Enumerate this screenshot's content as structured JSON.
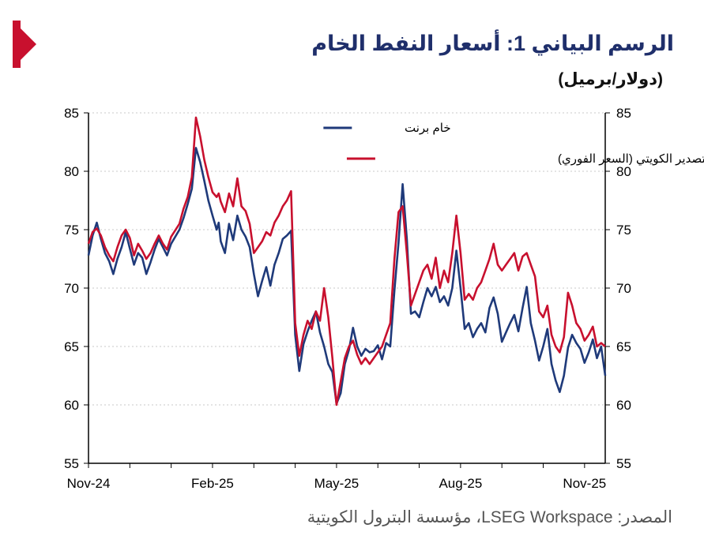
{
  "header": {
    "title": "الرسم البياني 1: أسعار النفط الخام",
    "unit": "(دولار/برميل)"
  },
  "footer": {
    "source": "المصدر: LSEG Workspace، مؤسسة البترول الكويتية"
  },
  "colors": {
    "brand": "#c8102e",
    "brent": "#1f3a7a",
    "kuwait": "#c8102e",
    "title": "#1f2f6b"
  },
  "chart_data": {
    "type": "line",
    "x_ticks": [
      "Nov-24",
      "Feb-25",
      "May-25",
      "Aug-25",
      "Nov-25"
    ],
    "y_ticks": [
      55,
      60,
      65,
      70,
      75,
      80,
      85
    ],
    "ylim": [
      55,
      85
    ],
    "xlim": [
      0,
      12.5
    ],
    "grid": true,
    "legend_position": "top-center",
    "series": [
      {
        "name": "خام برنت",
        "color": "#1f3a7a",
        "x": [
          0,
          0.1,
          0.2,
          0.3,
          0.4,
          0.5,
          0.6,
          0.7,
          0.8,
          0.9,
          1.0,
          1.1,
          1.2,
          1.3,
          1.4,
          1.5,
          1.6,
          1.7,
          1.8,
          1.9,
          2.0,
          2.2,
          2.3,
          2.4,
          2.5,
          2.6,
          2.7,
          2.8,
          2.9,
          3.0,
          3.1,
          3.15,
          3.2,
          3.3,
          3.4,
          3.5,
          3.6,
          3.7,
          3.8,
          3.9,
          4.0,
          4.1,
          4.2,
          4.3,
          4.4,
          4.5,
          4.6,
          4.7,
          4.8,
          4.9,
          5.0,
          5.1,
          5.2,
          5.3,
          5.4,
          5.5,
          5.6,
          5.7,
          5.8,
          5.9,
          6.0,
          6.1,
          6.2,
          6.3,
          6.4,
          6.5,
          6.6,
          6.7,
          6.8,
          6.9,
          7.0,
          7.1,
          7.2,
          7.3,
          7.4,
          7.5,
          7.6,
          7.7,
          7.8,
          7.9,
          8.0,
          8.1,
          8.2,
          8.3,
          8.4,
          8.5,
          8.6,
          8.7,
          8.8,
          8.9,
          9.0,
          9.1,
          9.2,
          9.3,
          9.4,
          9.5,
          9.6,
          9.7,
          9.8,
          9.9,
          10.0,
          10.1,
          10.2,
          10.3,
          10.4,
          10.5,
          10.6,
          10.7,
          10.8,
          10.9,
          11.0,
          11.1,
          11.2,
          11.3,
          11.4,
          11.5,
          11.6,
          11.7,
          11.8,
          11.9,
          12.0,
          12.1,
          12.2,
          12.3,
          12.4,
          12.5
        ],
        "y": [
          72.8,
          74.5,
          75.6,
          74.2,
          73.0,
          72.3,
          71.2,
          72.5,
          73.5,
          74.8,
          73.4,
          72.0,
          73.0,
          72.6,
          71.2,
          72.2,
          73.3,
          74.2,
          73.5,
          72.8,
          73.8,
          75.0,
          76.0,
          77.2,
          78.5,
          82.0,
          80.8,
          79.2,
          77.5,
          76.2,
          75.0,
          75.6,
          74.0,
          73.0,
          75.5,
          74.1,
          76.2,
          75.0,
          74.4,
          73.5,
          71.2,
          69.3,
          70.6,
          71.8,
          70.2,
          72.0,
          73.0,
          74.2,
          74.5,
          74.9,
          66.0,
          62.9,
          65.2,
          66.3,
          67.2,
          68.0,
          66.2,
          65.0,
          63.5,
          62.8,
          60.1,
          61.0,
          63.5,
          64.7,
          66.6,
          65.0,
          64.2,
          64.8,
          64.5,
          64.6,
          65.1,
          63.9,
          65.3,
          65.0,
          69.8,
          73.9,
          78.9,
          74.2,
          67.8,
          68.0,
          67.5,
          68.8,
          70.0,
          69.3,
          70.1,
          68.8,
          69.3,
          68.5,
          70.0,
          73.2,
          70.0,
          66.5,
          67.0,
          65.8,
          66.5,
          67.0,
          66.2,
          68.3,
          69.2,
          67.8,
          65.4,
          66.2,
          67.0,
          67.7,
          66.3,
          68.3,
          70.1,
          67.0,
          65.5,
          63.8,
          65.0,
          66.5,
          63.5,
          62.1,
          61.1,
          62.5,
          64.9,
          66.0,
          65.3,
          64.8,
          63.6,
          64.5,
          65.6,
          64.0,
          65.0,
          62.5
        ]
      },
      {
        "name": "خام التصدير الكويتي (السعر الفوري)",
        "color": "#c8102e",
        "x": [
          0,
          0.1,
          0.2,
          0.3,
          0.4,
          0.5,
          0.6,
          0.7,
          0.8,
          0.9,
          1.0,
          1.1,
          1.2,
          1.3,
          1.4,
          1.5,
          1.6,
          1.7,
          1.8,
          1.9,
          2.0,
          2.2,
          2.3,
          2.4,
          2.5,
          2.6,
          2.7,
          2.8,
          2.9,
          3.0,
          3.1,
          3.15,
          3.2,
          3.3,
          3.4,
          3.5,
          3.6,
          3.7,
          3.8,
          3.9,
          4.0,
          4.1,
          4.2,
          4.3,
          4.4,
          4.5,
          4.6,
          4.7,
          4.8,
          4.9,
          5.0,
          5.1,
          5.2,
          5.3,
          5.4,
          5.5,
          5.6,
          5.7,
          5.8,
          5.9,
          6.0,
          6.1,
          6.2,
          6.3,
          6.4,
          6.5,
          6.6,
          6.7,
          6.8,
          6.9,
          7.0,
          7.1,
          7.2,
          7.3,
          7.4,
          7.5,
          7.6,
          7.7,
          7.8,
          7.9,
          8.0,
          8.1,
          8.2,
          8.3,
          8.4,
          8.5,
          8.6,
          8.7,
          8.8,
          8.9,
          9.0,
          9.1,
          9.2,
          9.3,
          9.4,
          9.5,
          9.6,
          9.7,
          9.8,
          9.9,
          10.0,
          10.1,
          10.2,
          10.3,
          10.4,
          10.5,
          10.6,
          10.7,
          10.8,
          10.9,
          11.0,
          11.1,
          11.2,
          11.3,
          11.4,
          11.5,
          11.6,
          11.7,
          11.8,
          11.9,
          12.0,
          12.1,
          12.2,
          12.3,
          12.4,
          12.5
        ],
        "y": [
          73.8,
          74.8,
          75.1,
          74.5,
          73.5,
          72.8,
          72.3,
          73.5,
          74.5,
          75.0,
          74.3,
          72.8,
          73.8,
          73.2,
          72.5,
          73.0,
          73.8,
          74.5,
          73.8,
          73.3,
          74.4,
          75.5,
          76.8,
          77.8,
          79.5,
          84.6,
          83.0,
          81.0,
          79.5,
          78.2,
          77.8,
          78.1,
          77.4,
          76.5,
          78.1,
          77.0,
          79.4,
          77.0,
          76.6,
          75.5,
          73.0,
          73.5,
          74.0,
          74.8,
          74.5,
          75.6,
          76.2,
          77.0,
          77.5,
          78.3,
          67.0,
          64.2,
          66.0,
          67.2,
          66.5,
          68.0,
          67.2,
          70.0,
          67.5,
          64.0,
          60.0,
          62.0,
          64.0,
          65.0,
          65.5,
          64.3,
          63.5,
          64.0,
          63.5,
          64.0,
          64.5,
          65.0,
          66.0,
          67.0,
          72.5,
          76.5,
          77.0,
          73.0,
          68.5,
          69.5,
          70.5,
          71.5,
          72.0,
          70.8,
          72.6,
          70.0,
          71.5,
          70.5,
          73.0,
          76.2,
          73.0,
          69.0,
          69.5,
          69.0,
          70.0,
          70.5,
          71.5,
          72.5,
          73.8,
          72.0,
          71.5,
          72.0,
          72.5,
          73.0,
          71.5,
          72.7,
          73.0,
          72.0,
          71.0,
          68.0,
          67.5,
          68.5,
          66.0,
          65.0,
          64.5,
          65.8,
          69.6,
          68.5,
          67.0,
          66.5,
          65.5,
          66.0,
          66.7,
          65.0,
          65.3,
          65.0
        ]
      }
    ]
  }
}
